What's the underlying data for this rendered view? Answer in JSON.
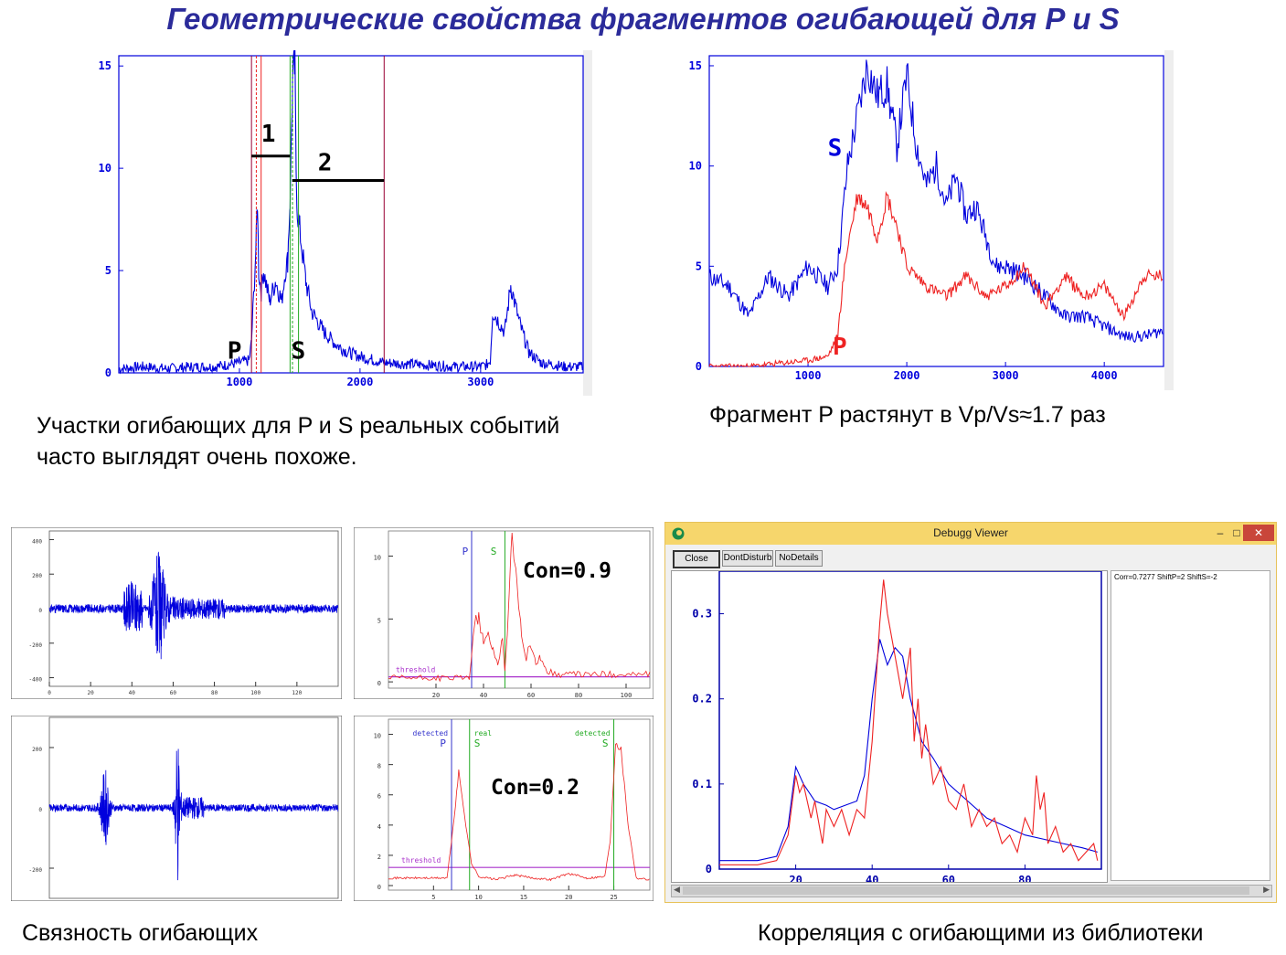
{
  "title": "Геометрические свойства фрагментов огибающей для P и S",
  "captions": {
    "top_left_line1": "Участки огибающих для P и S реальных событий",
    "top_left_line2": "часто выглядят очень похоже.",
    "top_right": "Фрагмент P растянут в Vp/Vs≈1.7 раз",
    "bottom_left": "Связность огибающих",
    "bottom_right": "Корреляция с огибающими из библиотеки"
  },
  "colors": {
    "title": "#2b2b9a",
    "blue": "#0000dd",
    "red": "#ee2222",
    "green": "#22aa22",
    "purple": "#aa33cc",
    "darkred": "#990033"
  },
  "chart_data": [
    {
      "id": "envelope_full",
      "type": "line",
      "xlim": [
        0,
        3850
      ],
      "ylim": [
        0,
        15.5
      ],
      "xticks": [
        1000,
        2000,
        3000
      ],
      "yticks": [
        0,
        5,
        10,
        15
      ],
      "series": [
        {
          "color": "#0000dd",
          "x": [
            0,
            200,
            400,
            600,
            800,
            900,
            1000,
            1080,
            1100,
            1140,
            1150,
            1160,
            1180,
            1200,
            1250,
            1300,
            1350,
            1380,
            1400,
            1420,
            1440,
            1460,
            1470,
            1480,
            1500,
            1550,
            1600,
            1700,
            1800,
            1900,
            2000,
            2200,
            2500,
            2800,
            3000,
            3050,
            3080,
            3100,
            3200,
            3250,
            3280,
            3320,
            3400,
            3500,
            3600,
            3700,
            3850
          ],
          "y": [
            0.2,
            0.3,
            0.2,
            0.3,
            0.3,
            0.4,
            0.5,
            0.6,
            1.5,
            6.5,
            8.5,
            5.0,
            4.0,
            5.0,
            3.5,
            4.5,
            3.5,
            5.0,
            5.5,
            8.5,
            14.0,
            15.0,
            10.0,
            8.0,
            7.0,
            4.5,
            3.0,
            2.0,
            1.4,
            1.0,
            0.8,
            0.5,
            0.4,
            0.3,
            0.3,
            0.4,
            0.6,
            3.0,
            2.0,
            4.3,
            3.5,
            2.5,
            1.0,
            0.5,
            0.4,
            0.3,
            0.3
          ]
        }
      ],
      "labels": {
        "marker1": "1",
        "marker2": "2",
        "p": "P",
        "s": "S"
      }
    },
    {
      "id": "stretched",
      "type": "line",
      "xlim": [
        0,
        4600
      ],
      "ylim": [
        0,
        15.5
      ],
      "xticks": [
        1000,
        2000,
        3000,
        4000
      ],
      "yticks": [
        0,
        5,
        10,
        15
      ],
      "series": [
        {
          "name": "S",
          "color": "#0000dd",
          "x": [
            0,
            200,
            400,
            600,
            800,
            1000,
            1200,
            1300,
            1400,
            1500,
            1600,
            1700,
            1800,
            1900,
            2000,
            2100,
            2200,
            2300,
            2400,
            2500,
            2600,
            2700,
            2800,
            2900,
            3000,
            3200,
            3400,
            3600,
            3800,
            4000,
            4200,
            4400,
            4600
          ],
          "y": [
            4.5,
            4.0,
            2.5,
            4.5,
            3.5,
            5.0,
            4.0,
            5.0,
            10.0,
            12.5,
            15.0,
            13.5,
            14.0,
            11.0,
            14.5,
            11.0,
            9.0,
            10.0,
            8.0,
            9.5,
            7.5,
            8.0,
            6.5,
            5.0,
            5.0,
            4.5,
            3.5,
            2.5,
            2.5,
            2.0,
            1.5,
            1.5,
            1.8
          ]
        },
        {
          "name": "P",
          "color": "#ee2222",
          "x": [
            0,
            200,
            400,
            600,
            800,
            1000,
            1200,
            1300,
            1350,
            1400,
            1500,
            1600,
            1700,
            1800,
            1900,
            2000,
            2100,
            2200,
            2400,
            2600,
            2800,
            3000,
            3200,
            3400,
            3600,
            3800,
            4000,
            4200,
            4400,
            4600
          ],
          "y": [
            0,
            0,
            0,
            0.1,
            0.2,
            0.3,
            0.5,
            1.5,
            4.0,
            6.0,
            8.5,
            8.0,
            6.5,
            8.5,
            7.0,
            5.0,
            4.5,
            4.0,
            3.5,
            4.5,
            3.5,
            4.0,
            5.0,
            3.0,
            4.5,
            3.5,
            4.0,
            2.5,
            4.5,
            4.5
          ]
        }
      ],
      "labels": {
        "s": "S",
        "p": "P"
      }
    },
    {
      "id": "seismogram_1",
      "type": "line",
      "xlim": [
        0,
        140
      ],
      "ylim": [
        -450,
        450
      ],
      "xticks": [
        0,
        20,
        40,
        60,
        80,
        100,
        120
      ],
      "yticks": [
        400,
        200,
        0,
        -200,
        -400
      ]
    },
    {
      "id": "coherence_1",
      "type": "line",
      "xlim": [
        0,
        110
      ],
      "ylim": [
        -0.5,
        12
      ],
      "xticks": [
        20,
        40,
        60,
        80,
        100
      ],
      "yticks": [
        0,
        5,
        10
      ],
      "annotation": "Con=0.9",
      "markers": {
        "p": "P",
        "s": "S"
      },
      "threshold_label": "threshold"
    },
    {
      "id": "seismogram_2",
      "type": "line",
      "xlim": [
        0,
        140
      ],
      "ylim": [
        -300,
        300
      ],
      "yticks": [
        200,
        0,
        -200
      ]
    },
    {
      "id": "coherence_2",
      "type": "line",
      "xlim": [
        0,
        29
      ],
      "ylim": [
        -0.3,
        11
      ],
      "xticks": [
        5,
        10,
        15,
        20,
        25
      ],
      "yticks": [
        0,
        2,
        4,
        6,
        8,
        10
      ],
      "annotation": "Con=0.2",
      "markers": {
        "detected_p_top": "detected",
        "detected_p": "P",
        "real_s_top": "real",
        "real_s": "S",
        "detected_s_top": "detected",
        "detected_s": "S"
      },
      "threshold_label": "threshold"
    },
    {
      "id": "library_correlation",
      "type": "line",
      "xlim": [
        0,
        100
      ],
      "ylim": [
        0,
        0.35
      ],
      "xticks": [
        20,
        40,
        60,
        80
      ],
      "yticks": [
        0,
        0.1,
        0.2,
        0.3
      ],
      "ytick_labels": [
        "0",
        "0.1",
        "0.2",
        "0.3"
      ],
      "series": [
        {
          "color": "#0000dd",
          "x": [
            0,
            5,
            10,
            15,
            18,
            20,
            22,
            25,
            28,
            30,
            33,
            36,
            38,
            40,
            42,
            44,
            46,
            48,
            50,
            53,
            56,
            60,
            65,
            70,
            75,
            80,
            85,
            90,
            95,
            99
          ],
          "y": [
            0.01,
            0.01,
            0.01,
            0.015,
            0.05,
            0.12,
            0.1,
            0.08,
            0.075,
            0.07,
            0.075,
            0.08,
            0.11,
            0.2,
            0.27,
            0.24,
            0.26,
            0.25,
            0.2,
            0.15,
            0.13,
            0.1,
            0.08,
            0.06,
            0.05,
            0.04,
            0.035,
            0.03,
            0.025,
            0.02
          ]
        },
        {
          "color": "#ee2222",
          "x": [
            0,
            5,
            10,
            15,
            18,
            20,
            21,
            22,
            24,
            25,
            27,
            28,
            30,
            32,
            34,
            36,
            38,
            40,
            42,
            43,
            44,
            46,
            48,
            50,
            51,
            52,
            53,
            54,
            56,
            58,
            60,
            62,
            64,
            66,
            68,
            70,
            72,
            74,
            76,
            78,
            80,
            82,
            83,
            84,
            85,
            86,
            88,
            90,
            92,
            94,
            96,
            98,
            99
          ],
          "y": [
            0.005,
            0.005,
            0.005,
            0.01,
            0.04,
            0.11,
            0.09,
            0.1,
            0.06,
            0.08,
            0.03,
            0.07,
            0.05,
            0.07,
            0.04,
            0.07,
            0.06,
            0.15,
            0.29,
            0.34,
            0.3,
            0.25,
            0.2,
            0.26,
            0.15,
            0.2,
            0.13,
            0.17,
            0.1,
            0.12,
            0.08,
            0.07,
            0.1,
            0.05,
            0.07,
            0.05,
            0.06,
            0.03,
            0.04,
            0.02,
            0.06,
            0.04,
            0.11,
            0.07,
            0.09,
            0.03,
            0.05,
            0.02,
            0.03,
            0.01,
            0.02,
            0.03,
            0.01
          ]
        }
      ]
    }
  ],
  "debug_window": {
    "title": "Debugg Viewer",
    "buttons": [
      "Close",
      "DontDisturb",
      "NoDetails"
    ],
    "info_text": "Corr=0.7277 ShiftP=2 ShiftS=-2",
    "controls": {
      "minimize": "–",
      "maximize": "□",
      "close": "✕"
    }
  }
}
